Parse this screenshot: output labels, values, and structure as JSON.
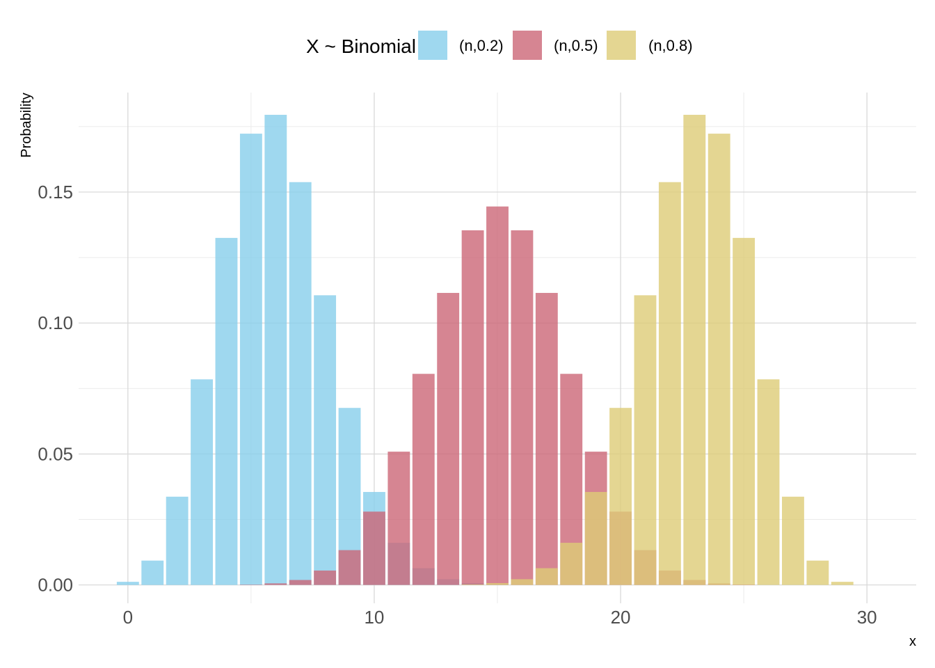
{
  "chart_data": {
    "type": "bar",
    "title": "",
    "xlabel": "x",
    "ylabel": "Probability",
    "xlim": [
      -2,
      32
    ],
    "ylim": [
      -0.007,
      0.188
    ],
    "x_ticks": [
      0,
      10,
      20,
      30
    ],
    "y_ticks": [
      0,
      0.05,
      0.1,
      0.15
    ],
    "x_tick_labels": [
      "0",
      "10",
      "20",
      "30"
    ],
    "y_tick_labels": [
      "0.00",
      "0.05",
      "0.10",
      "0.15"
    ],
    "grid": true,
    "legend": {
      "title": "X ~ Binomial",
      "placement": "top"
    },
    "x": [
      0,
      1,
      2,
      3,
      4,
      5,
      6,
      7,
      8,
      9,
      10,
      11,
      12,
      13,
      14,
      15,
      16,
      17,
      18,
      19,
      20,
      21,
      22,
      23,
      24,
      25,
      26,
      27,
      28,
      29,
      30
    ],
    "series": [
      {
        "name": "(n,0.2)",
        "color": "#87CEEB",
        "values": [
          0.0012,
          0.0093,
          0.0337,
          0.0785,
          0.1325,
          0.1723,
          0.1795,
          0.1538,
          0.1106,
          0.0676,
          0.0355,
          0.0161,
          0.0064,
          0.0022,
          0.0007,
          0.0002,
          0,
          0,
          0,
          0,
          0,
          0,
          0,
          0,
          0,
          0,
          0,
          0,
          0,
          0,
          0
        ]
      },
      {
        "name": "(n,0.5)",
        "color": "#CC6677",
        "values": [
          0,
          0,
          0,
          0,
          0,
          0.0001,
          0.0006,
          0.0019,
          0.0055,
          0.0133,
          0.028,
          0.0509,
          0.0806,
          0.1115,
          0.1354,
          0.1445,
          0.1354,
          0.1115,
          0.0806,
          0.0509,
          0.028,
          0.0133,
          0.0055,
          0.0019,
          0.0006,
          0.0001,
          0,
          0,
          0,
          0,
          0
        ]
      },
      {
        "name": "(n,0.8)",
        "color": "#DDCC77",
        "values": [
          0,
          0,
          0,
          0,
          0,
          0,
          0,
          0,
          0,
          0,
          0,
          0,
          0,
          0,
          0.0002,
          0.0007,
          0.0022,
          0.0064,
          0.0161,
          0.0355,
          0.0676,
          0.1106,
          0.1538,
          0.1795,
          0.1723,
          0.1325,
          0.0785,
          0.0337,
          0.0093,
          0.0012,
          0
        ]
      }
    ]
  }
}
